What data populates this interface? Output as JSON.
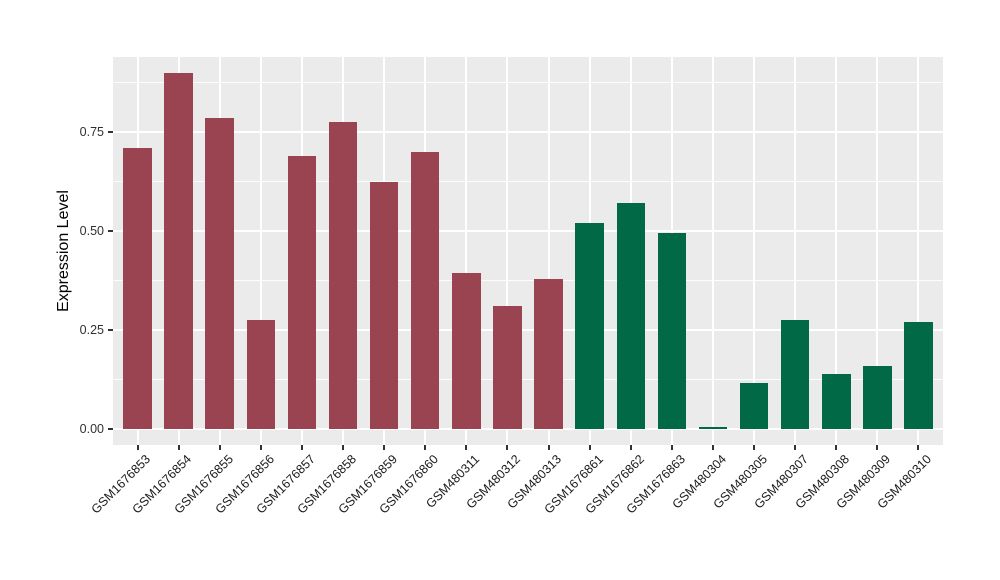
{
  "chart_data": {
    "type": "bar",
    "title": "",
    "xlabel": "",
    "ylabel": "Expression Level",
    "ylim": [
      -0.045,
      0.945
    ],
    "yticks": [
      0.0,
      0.25,
      0.5,
      0.75
    ],
    "ytick_labels": [
      "0.00",
      "0.25",
      "0.50",
      "0.75"
    ],
    "minor_tick_step": 0.125,
    "grid": "on",
    "legend": "none",
    "panel_bg": "#EBEBEB",
    "grid_color": "#FFFFFF",
    "group_colors": {
      "maroon": "#9A4351",
      "green": "#016946"
    },
    "categories": [
      "GSM1676853",
      "GSM1676854",
      "GSM1676855",
      "GSM1676856",
      "GSM1676857",
      "GSM1676858",
      "GSM1676859",
      "GSM1676860",
      "GSM480311",
      "GSM480312",
      "GSM480313",
      "GSM1676861",
      "GSM1676862",
      "GSM1676863",
      "GSM480304",
      "GSM480305",
      "GSM480307",
      "GSM480308",
      "GSM480309",
      "GSM480310"
    ],
    "bars": [
      {
        "label": "GSM1676853",
        "value": 0.71,
        "group": "maroon"
      },
      {
        "label": "GSM1676854",
        "value": 0.9,
        "group": "maroon"
      },
      {
        "label": "GSM1676855",
        "value": 0.785,
        "group": "maroon"
      },
      {
        "label": "GSM1676856",
        "value": 0.275,
        "group": "maroon"
      },
      {
        "label": "GSM1676857",
        "value": 0.69,
        "group": "maroon"
      },
      {
        "label": "GSM1676858",
        "value": 0.775,
        "group": "maroon"
      },
      {
        "label": "GSM1676859",
        "value": 0.625,
        "group": "maroon"
      },
      {
        "label": "GSM1676860",
        "value": 0.7,
        "group": "maroon"
      },
      {
        "label": "GSM480311",
        "value": 0.395,
        "group": "maroon"
      },
      {
        "label": "GSM480312",
        "value": 0.31,
        "group": "maroon"
      },
      {
        "label": "GSM480313",
        "value": 0.38,
        "group": "maroon"
      },
      {
        "label": "GSM1676861",
        "value": 0.52,
        "group": "green"
      },
      {
        "label": "GSM1676862",
        "value": 0.57,
        "group": "green"
      },
      {
        "label": "GSM1676863",
        "value": 0.495,
        "group": "green"
      },
      {
        "label": "GSM480304",
        "value": 0.005,
        "group": "green"
      },
      {
        "label": "GSM480305",
        "value": 0.115,
        "group": "green"
      },
      {
        "label": "GSM480307",
        "value": 0.275,
        "group": "green"
      },
      {
        "label": "GSM480308",
        "value": 0.14,
        "group": "green"
      },
      {
        "label": "GSM480309",
        "value": 0.16,
        "group": "green"
      },
      {
        "label": "GSM480310",
        "value": 0.27,
        "group": "green"
      }
    ]
  }
}
